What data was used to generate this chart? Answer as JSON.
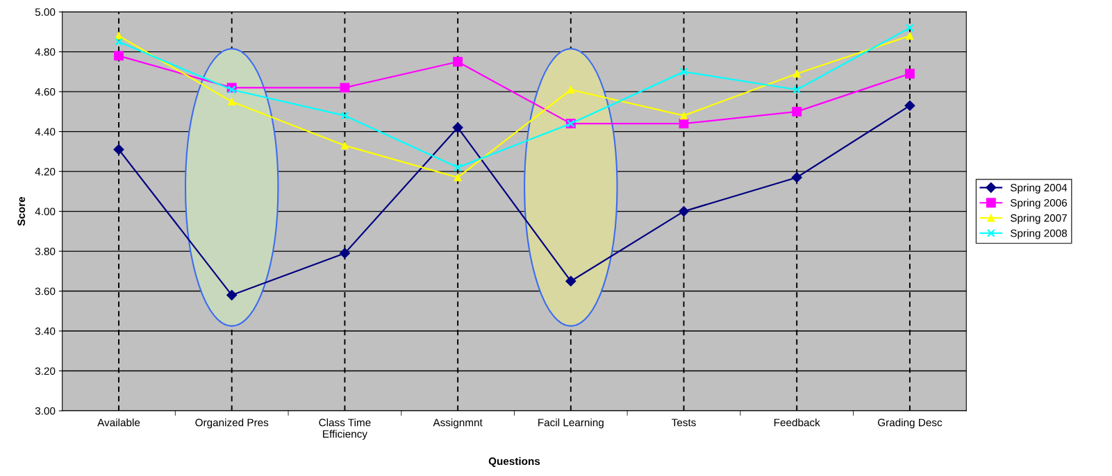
{
  "chart_data": {
    "type": "line",
    "xlabel": "Questions",
    "ylabel": "Score",
    "categories": [
      "Available",
      "Organized Pres",
      "Class Time\nEfficiency",
      "Assignmnt",
      "Facil Learning",
      "Tests",
      "Feedback",
      "Grading Desc"
    ],
    "series": [
      {
        "name": "Spring 2004",
        "color": "#000080",
        "marker": "diamond",
        "values": [
          4.31,
          3.58,
          3.79,
          4.42,
          3.65,
          4.0,
          4.17,
          4.53
        ]
      },
      {
        "name": "Spring 2006",
        "color": "#ff00ff",
        "marker": "square",
        "values": [
          4.78,
          4.62,
          4.62,
          4.75,
          4.44,
          4.44,
          4.5,
          4.69
        ]
      },
      {
        "name": "Spring 2007",
        "color": "#ffff00",
        "marker": "triangle",
        "values": [
          4.88,
          4.55,
          4.33,
          4.17,
          4.61,
          4.48,
          4.69,
          4.88
        ]
      },
      {
        "name": "Spring 2008",
        "color": "#00ffff",
        "marker": "cross",
        "values": [
          4.85,
          4.61,
          4.48,
          4.22,
          4.44,
          4.7,
          4.61,
          4.92
        ]
      }
    ],
    "ylim": [
      3.0,
      5.0
    ],
    "yticks": [
      {
        "value": 3.0,
        "label": "3.00"
      },
      {
        "value": 3.2,
        "label": "3.20"
      },
      {
        "value": 3.4,
        "label": "3.40"
      },
      {
        "value": 3.6,
        "label": "3.60"
      },
      {
        "value": 3.8,
        "label": "3.80"
      },
      {
        "value": 4.0,
        "label": "4.00"
      },
      {
        "value": 4.2,
        "label": "4.20"
      },
      {
        "value": 4.4,
        "label": "4.40"
      },
      {
        "value": 4.6,
        "label": "4.60"
      },
      {
        "value": 4.8,
        "label": "4.80"
      },
      {
        "value": 5.0,
        "label": "5.00"
      }
    ],
    "grid": true,
    "legend": "right"
  }
}
